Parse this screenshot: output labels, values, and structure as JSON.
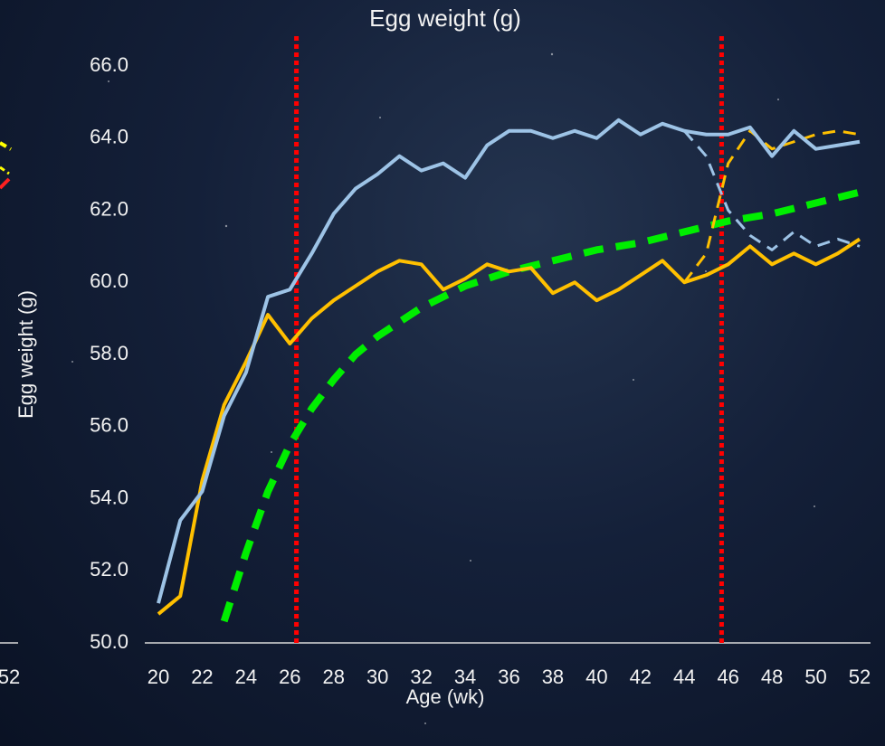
{
  "chart_data": {
    "type": "line",
    "title": "Egg weight (g)",
    "xlabel": "Age (wk)",
    "ylabel": "Egg weight (g)",
    "left_fragment_label": "52",
    "x": [
      20,
      21,
      22,
      23,
      24,
      25,
      26,
      27,
      28,
      29,
      30,
      31,
      32,
      33,
      34,
      35,
      36,
      37,
      38,
      39,
      40,
      41,
      42,
      43,
      44,
      45,
      46,
      47,
      48,
      49,
      50,
      51,
      52
    ],
    "xlim": [
      20,
      52
    ],
    "xticks": [
      20,
      22,
      24,
      26,
      28,
      30,
      32,
      34,
      36,
      38,
      40,
      42,
      44,
      46,
      48,
      50,
      52
    ],
    "ylim": [
      50,
      66
    ],
    "yticks": [
      {
        "value": 50,
        "label": "50.0"
      },
      {
        "value": 52,
        "label": "52.0"
      },
      {
        "value": 54,
        "label": "54.0"
      },
      {
        "value": 56,
        "label": "56.0"
      },
      {
        "value": 58,
        "label": "58.0"
      },
      {
        "value": 60,
        "label": "60.0"
      },
      {
        "value": 62,
        "label": "62.0"
      },
      {
        "value": 64,
        "label": "64.0"
      },
      {
        "value": 66,
        "label": "66.0"
      }
    ],
    "vlines": [
      26.3,
      45.7
    ],
    "vline_color": "#ff0000",
    "series": [
      {
        "color": "#00ee00",
        "dashed": true,
        "width": 8,
        "values": [
          null,
          null,
          null,
          50.6,
          52.5,
          54.2,
          55.5,
          56.5,
          57.3,
          58.0,
          58.5,
          58.9,
          59.3,
          59.6,
          59.9,
          60.1,
          60.3,
          60.45,
          60.6,
          60.75,
          60.9,
          61.0,
          61.1,
          61.25,
          61.4,
          61.55,
          61.7,
          61.8,
          61.9,
          62.05,
          62.2,
          62.35,
          62.5
        ]
      },
      {
        "color": "#ffc000",
        "dashed": true,
        "width": 3,
        "values": [
          null,
          null,
          null,
          null,
          null,
          null,
          null,
          null,
          null,
          null,
          null,
          null,
          null,
          null,
          null,
          null,
          null,
          null,
          null,
          null,
          null,
          null,
          null,
          null,
          60.0,
          60.8,
          63.3,
          64.2,
          63.7,
          63.9,
          64.1,
          64.2,
          64.1
        ]
      },
      {
        "color": "#9dc3e6",
        "dashed": true,
        "width": 3,
        "values": [
          null,
          null,
          null,
          null,
          null,
          null,
          null,
          null,
          null,
          null,
          null,
          null,
          null,
          null,
          null,
          null,
          null,
          null,
          null,
          null,
          null,
          null,
          null,
          null,
          64.2,
          63.5,
          62.0,
          61.3,
          60.9,
          61.4,
          61.0,
          61.2,
          61.0
        ]
      },
      {
        "color": "#ffc000",
        "dashed": false,
        "width": 4,
        "values": [
          50.8,
          51.3,
          54.5,
          56.6,
          57.8,
          59.1,
          58.3,
          59.0,
          59.5,
          59.9,
          60.3,
          60.6,
          60.5,
          59.8,
          60.1,
          60.5,
          60.3,
          60.4,
          59.7,
          60.0,
          59.5,
          59.8,
          60.2,
          60.6,
          60.0,
          60.2,
          60.5,
          61.0,
          60.5,
          60.8,
          60.5,
          60.8,
          61.2
        ]
      },
      {
        "color": "#9dc3e6",
        "dashed": false,
        "width": 4,
        "values": [
          51.1,
          53.4,
          54.2,
          56.3,
          57.5,
          59.6,
          59.8,
          60.8,
          61.9,
          62.6,
          63.0,
          63.5,
          63.1,
          63.3,
          62.9,
          63.8,
          64.2,
          64.2,
          64.0,
          64.2,
          64.0,
          64.5,
          64.1,
          64.4,
          64.2,
          64.1,
          64.1,
          64.3,
          63.5,
          64.2,
          63.7,
          63.8,
          63.9
        ]
      }
    ]
  }
}
